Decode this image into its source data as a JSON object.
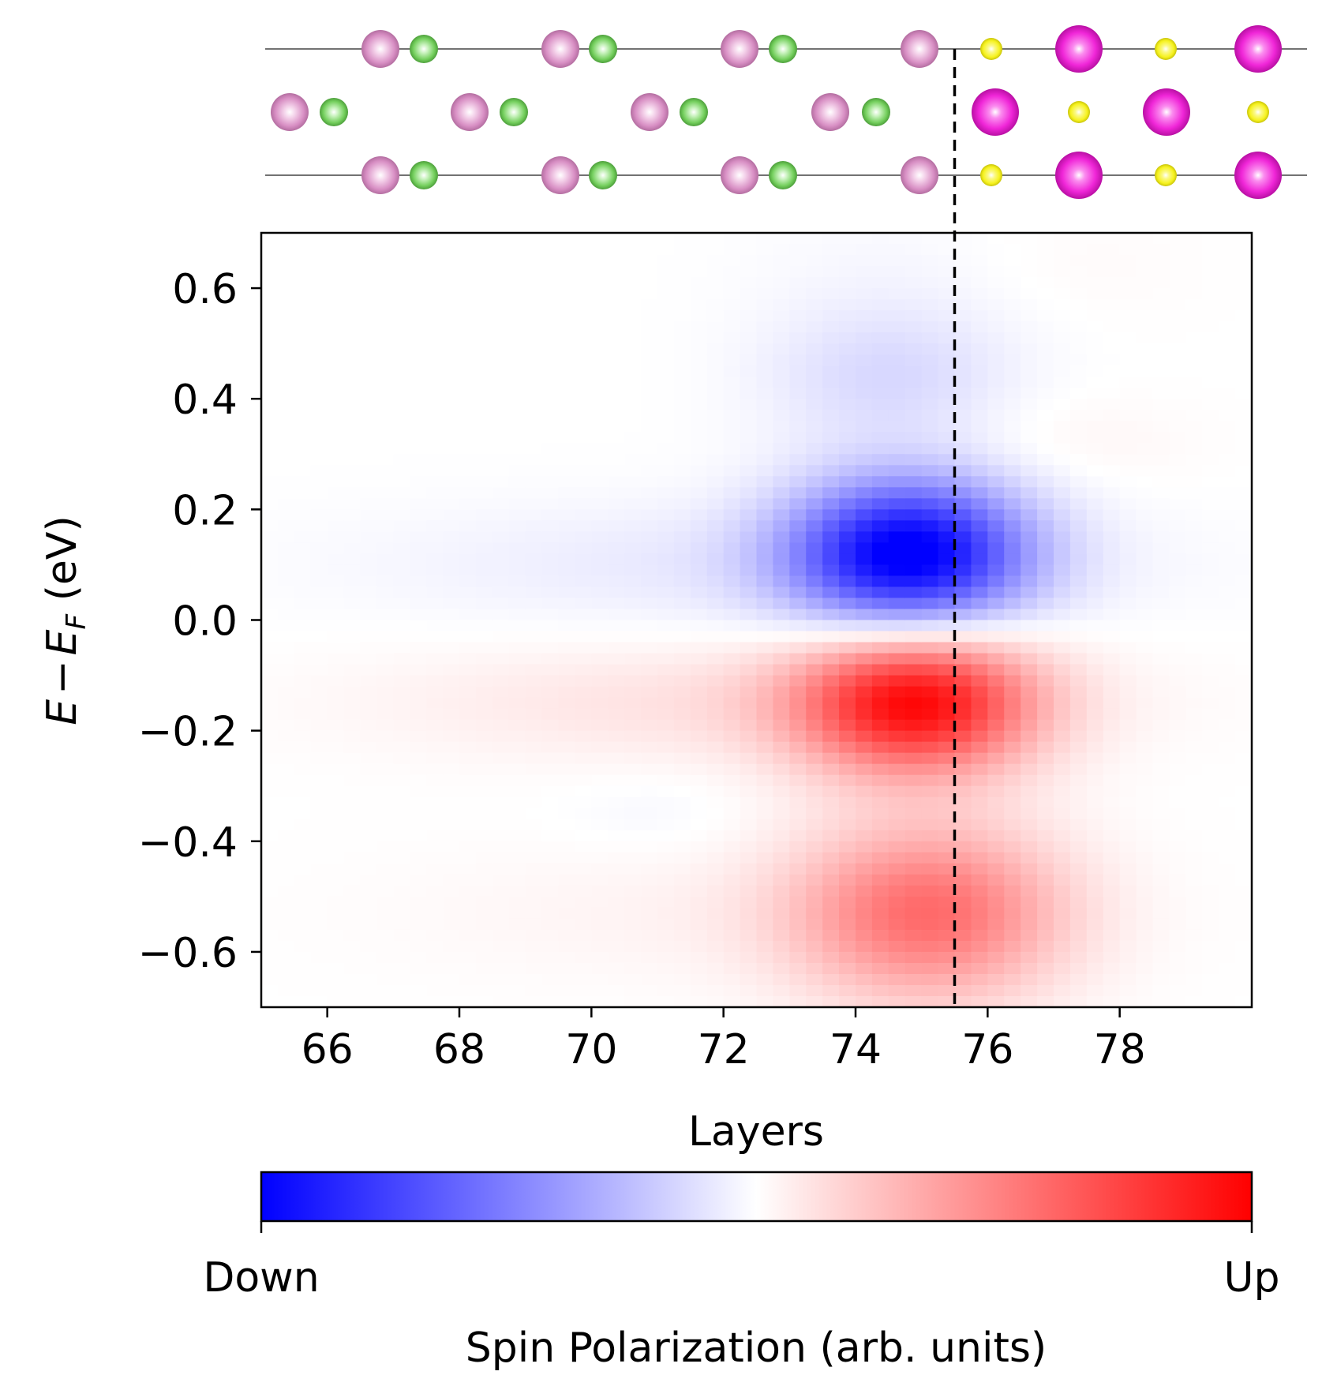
{
  "chart_data": {
    "type": "heatmap",
    "xlabel": "Layers",
    "ylabel_parts": [
      "E",
      "−",
      "E",
      "F",
      " (eV)"
    ],
    "xlim": [
      65,
      80
    ],
    "ylim": [
      -0.7,
      0.7
    ],
    "xticks": [
      66,
      68,
      70,
      72,
      74,
      76,
      78
    ],
    "xtick_labels": [
      "66",
      "68",
      "70",
      "72",
      "74",
      "76",
      "78"
    ],
    "yticks": [
      0.6,
      0.4,
      0.2,
      0.0,
      -0.2,
      -0.4,
      -0.6
    ],
    "ytick_labels": [
      "0.6",
      "0.4",
      "0.2",
      "0.0",
      "−0.2",
      "−0.4",
      "−0.6"
    ],
    "interface_line_x": 75.5,
    "colormap": {
      "low": "#0000ff",
      "mid": "#ffffff",
      "high": "#ff0000"
    },
    "colorbar": {
      "label": "Spin Polarization (arb. units)",
      "min_label": "Down",
      "max_label": "Up"
    },
    "features": [
      {
        "layer_center": 74.8,
        "energy_center": 0.12,
        "layer_width": 1.25,
        "energy_width": 0.095,
        "amplitude": -1.0,
        "polarization": "Down"
      },
      {
        "layer_center": 72.5,
        "energy_center": 0.1,
        "layer_width": 3.8,
        "energy_width": 0.08,
        "amplitude": -0.09,
        "polarization": "Down"
      },
      {
        "layer_center": 74.9,
        "energy_center": -0.15,
        "layer_width": 1.25,
        "energy_width": 0.09,
        "amplitude": 0.9,
        "polarization": "Up"
      },
      {
        "layer_center": 72.2,
        "energy_center": -0.15,
        "layer_width": 3.6,
        "energy_width": 0.075,
        "amplitude": 0.12,
        "polarization": "Up"
      },
      {
        "layer_center": 75.1,
        "energy_center": -0.53,
        "layer_width": 1.4,
        "energy_width": 0.11,
        "amplitude": 0.55,
        "polarization": "Up"
      },
      {
        "layer_center": 72.3,
        "energy_center": -0.53,
        "layer_width": 3.5,
        "energy_width": 0.09,
        "amplitude": 0.05,
        "polarization": "Up"
      },
      {
        "layer_center": 74.5,
        "energy_center": 0.44,
        "layer_width": 1.3,
        "energy_width": 0.085,
        "amplitude": -0.15,
        "polarization": "Down"
      },
      {
        "layer_center": 74.6,
        "energy_center": 0.62,
        "layer_width": 1.5,
        "energy_width": 0.09,
        "amplitude": -0.03,
        "polarization": "Down"
      },
      {
        "layer_center": 77.0,
        "energy_center": 0.32,
        "layer_width": 1.4,
        "energy_width": 0.06,
        "amplitude": 0.04,
        "polarization": "Up"
      },
      {
        "layer_center": 77.2,
        "energy_center": 0.64,
        "layer_width": 1.4,
        "energy_width": 0.08,
        "amplitude": 0.02,
        "polarization": "Up"
      },
      {
        "layer_center": 71.0,
        "energy_center": -0.35,
        "layer_width": 1.0,
        "energy_width": 0.05,
        "amplitude": -0.03,
        "polarization": "Down"
      }
    ],
    "structure": {
      "layer_rows": 3,
      "colors": {
        "light_pink": "#d88fc4",
        "green": "#6fcf5a",
        "magenta": "#f026d8",
        "yellow": "#f6f21e"
      }
    }
  }
}
